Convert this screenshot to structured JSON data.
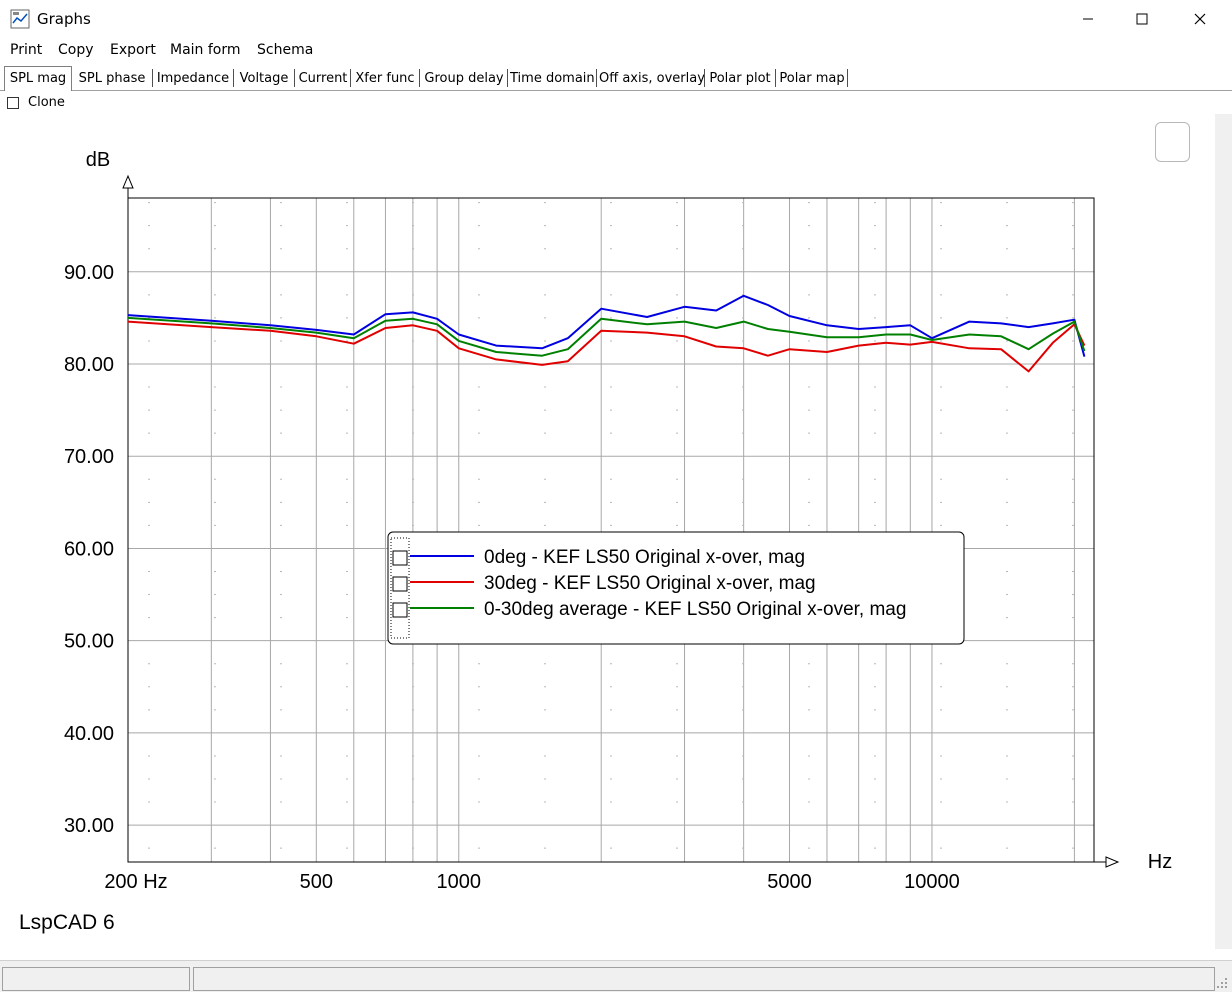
{
  "window": {
    "title": "Graphs"
  },
  "menu": [
    "Print",
    "Copy",
    "Export",
    "Main form",
    "Schema"
  ],
  "tabs": [
    "SPL mag",
    "SPL phase",
    "Impedance",
    "Voltage",
    "Current",
    "Xfer func",
    "Group delay",
    "Time domain",
    "Off axis, overlay",
    "Polar plot",
    "Polar map"
  ],
  "active_tab": "SPL mag",
  "clone_label": "Clone",
  "watermark": "LspCAD 6",
  "chart_data": {
    "type": "line",
    "ylabel": "dB",
    "xlabel": "Hz",
    "xscale": "log",
    "xlim": [
      200,
      22000
    ],
    "ylim": [
      26,
      98
    ],
    "yticks": [
      "90.00",
      "80.00",
      "70.00",
      "60.00",
      "50.00",
      "40.00",
      "30.00"
    ],
    "xticks": [
      "200 Hz",
      "500",
      "1000",
      "5000",
      "10000"
    ],
    "grid": true,
    "legend_position": "center",
    "series": [
      {
        "name": "0deg - KEF LS50 Original x-over, mag",
        "color": "#0000e0",
        "x": [
          200,
          300,
          400,
          500,
          600,
          700,
          800,
          900,
          1000,
          1200,
          1500,
          1700,
          2000,
          2500,
          3000,
          3500,
          4000,
          4500,
          5000,
          6000,
          7000,
          8000,
          9000,
          10000,
          12000,
          14000,
          16000,
          18000,
          20000,
          21000
        ],
        "y": [
          85.3,
          84.7,
          84.2,
          83.7,
          83.2,
          85.4,
          85.6,
          84.9,
          83.2,
          82.0,
          81.7,
          82.8,
          86.0,
          85.1,
          86.2,
          85.8,
          87.4,
          86.4,
          85.2,
          84.2,
          83.8,
          84.0,
          84.2,
          82.8,
          84.6,
          84.4,
          84.0,
          84.4,
          84.8,
          80.8
        ]
      },
      {
        "name": "30deg - KEF LS50 Original x-over, mag",
        "color": "#e00000",
        "x": [
          200,
          300,
          400,
          500,
          600,
          700,
          800,
          900,
          1000,
          1200,
          1500,
          1700,
          2000,
          2500,
          3000,
          3500,
          4000,
          4500,
          5000,
          6000,
          7000,
          8000,
          9000,
          10000,
          12000,
          14000,
          16000,
          18000,
          20000,
          21000
        ],
        "y": [
          84.6,
          84.0,
          83.6,
          83.0,
          82.2,
          83.9,
          84.2,
          83.6,
          81.7,
          80.5,
          79.9,
          80.3,
          83.6,
          83.4,
          83.0,
          81.9,
          81.7,
          80.9,
          81.6,
          81.3,
          82.0,
          82.3,
          82.1,
          82.4,
          81.7,
          81.6,
          79.2,
          82.3,
          84.3,
          82.0
        ]
      },
      {
        "name": "0-30deg average - KEF LS50 Original x-over, mag",
        "color": "#008000",
        "x": [
          200,
          300,
          400,
          500,
          600,
          700,
          800,
          900,
          1000,
          1200,
          1500,
          1700,
          2000,
          2500,
          3000,
          3500,
          4000,
          4500,
          5000,
          6000,
          7000,
          8000,
          9000,
          10000,
          12000,
          14000,
          16000,
          18000,
          20000,
          21000
        ],
        "y": [
          85.0,
          84.4,
          83.9,
          83.4,
          82.8,
          84.7,
          84.9,
          84.3,
          82.5,
          81.3,
          80.9,
          81.6,
          84.9,
          84.3,
          84.6,
          83.9,
          84.6,
          83.8,
          83.5,
          82.9,
          82.9,
          83.2,
          83.2,
          82.6,
          83.2,
          83.0,
          81.6,
          83.3,
          84.6,
          81.4
        ]
      }
    ]
  }
}
